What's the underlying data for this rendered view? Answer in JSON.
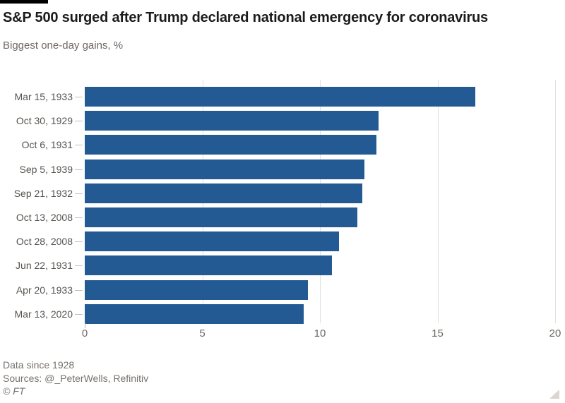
{
  "header": {
    "title": "S&P 500 surged after Trump declared national emergency for coronavirus",
    "subtitle": "Biggest one-day gains, %"
  },
  "chart_data": {
    "type": "bar",
    "orientation": "horizontal",
    "title": "S&P 500 surged after Trump declared national emergency for coronavirus",
    "subtitle": "Biggest one-day gains, %",
    "categories": [
      "Mar 15, 1933",
      "Oct 30, 1929",
      "Oct 6, 1931",
      "Sep 5, 1939",
      "Sep 21, 1932",
      "Oct 13, 2008",
      "Oct 28, 2008",
      "Jun 22, 1931",
      "Apr 20, 1933",
      "Mar 13, 2020"
    ],
    "values": [
      16.6,
      12.5,
      12.4,
      11.9,
      11.8,
      11.6,
      10.8,
      10.5,
      9.5,
      9.3
    ],
    "unit": "%",
    "xlabel": "",
    "ylabel": "",
    "xlim": [
      0,
      20
    ],
    "xticks": [
      0,
      5,
      10,
      15,
      20
    ],
    "grid": true,
    "legend": false,
    "bar_color": "#235a94"
  },
  "footer": {
    "note": "Data since 1928",
    "sources": "Sources: @_PeterWells, Refinitiv",
    "copyright": "© FT"
  },
  "colors": {
    "bar": "#235a94",
    "title_text": "#1c1b19",
    "muted_text": "#6e6862",
    "category_text": "#57534f",
    "gridline": "#e2e0dd",
    "tick": "#c4c0bc",
    "top_rule": "#000000",
    "background": "#ffffff",
    "resize_handle": "#dad6d1"
  }
}
